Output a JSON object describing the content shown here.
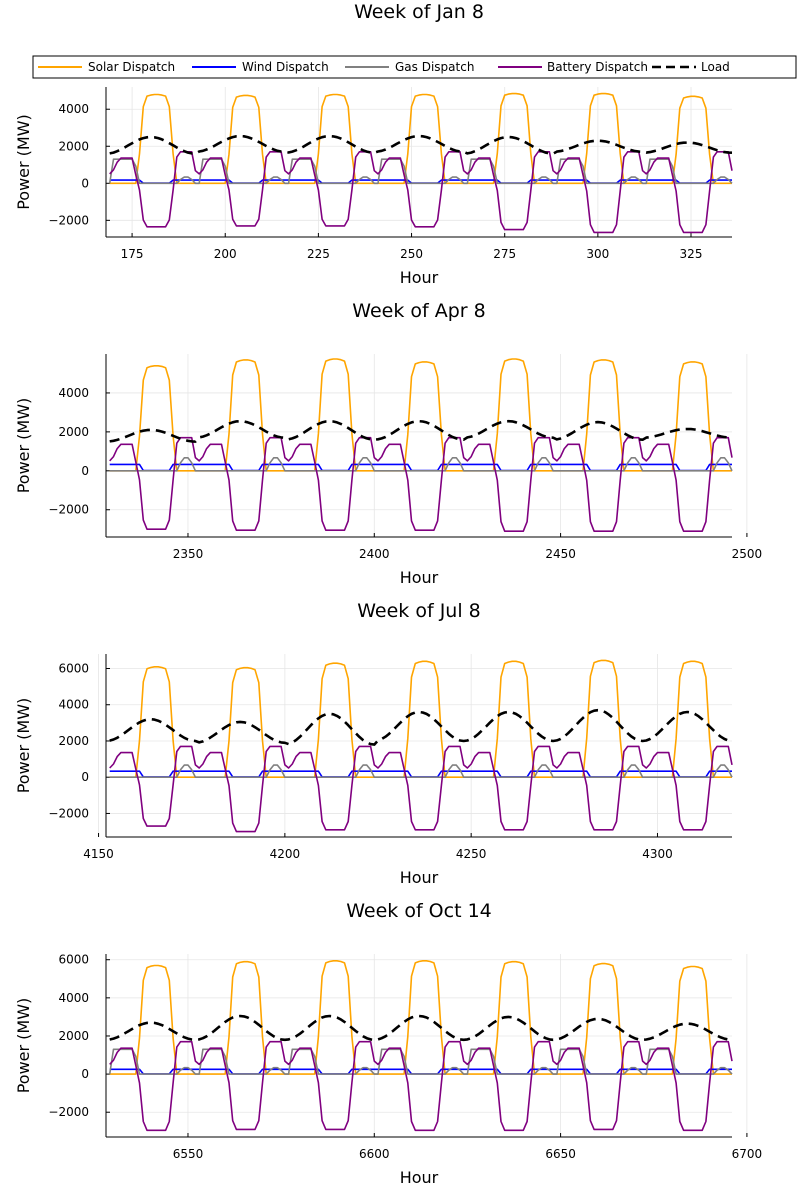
{
  "legend": {
    "placement": "top",
    "entries": [
      {
        "label": "Solar Dispatch",
        "color": "#FFA500",
        "dash": false
      },
      {
        "label": "Wind Dispatch",
        "color": "#0000FF",
        "dash": false
      },
      {
        "label": "Gas Dispatch",
        "color": "#808080",
        "dash": false
      },
      {
        "label": "Battery Dispatch",
        "color": "#800080",
        "dash": false
      },
      {
        "label": "Load",
        "color": "#000000",
        "dash": true
      }
    ]
  },
  "chart_data": [
    {
      "type": "line",
      "title": "Week of Jan 8",
      "xlabel": "Hour",
      "ylabel": "Power (MW)",
      "xlim": [
        168,
        336
      ],
      "ylim": [
        -2900,
        5200
      ],
      "xticks": [
        175,
        200,
        225,
        250,
        275,
        300,
        325
      ],
      "yticks": [
        -2000,
        0,
        2000,
        4000
      ],
      "grid": true,
      "params": {
        "solar_peaks": [
          4800,
          4750,
          4800,
          4800,
          4850,
          4850,
          4700
        ],
        "load_peak": [
          2500,
          2550,
          2550,
          2550,
          2500,
          2300,
          2200
        ],
        "load_min": [
          1600,
          1700,
          1650,
          1700,
          1600,
          1700,
          1650
        ],
        "batt_min": [
          -2350,
          -2300,
          -2300,
          -2350,
          -2500,
          -2650,
          -2650
        ],
        "batt_max": 1700,
        "gas_level": 1300,
        "wind_level": 170
      }
    },
    {
      "type": "line",
      "title": "Week of Apr 8",
      "xlabel": "Hour",
      "ylabel": "Power (MW)",
      "xlim": [
        2328,
        2496
      ],
      "ylim": [
        -3400,
        6000
      ],
      "xticks": [
        2350,
        2400,
        2450,
        2500
      ],
      "yticks": [
        -2000,
        0,
        2000,
        4000
      ],
      "grid": true,
      "params": {
        "solar_peaks": [
          5400,
          5700,
          5750,
          5600,
          5750,
          5700,
          5600
        ],
        "load_peak": [
          2100,
          2550,
          2550,
          2550,
          2550,
          2500,
          2150
        ],
        "load_min": [
          1500,
          1700,
          1600,
          1600,
          1700,
          1600,
          1700
        ],
        "batt_min": [
          -3000,
          -3050,
          -3050,
          -3050,
          -3100,
          -3100,
          -3100
        ],
        "batt_max": 1700,
        "gas_level": 0,
        "wind_level": 330
      }
    },
    {
      "type": "line",
      "title": "Week of Jul 8",
      "xlabel": "Hour",
      "ylabel": "Power (MW)",
      "xlim": [
        4152,
        4320
      ],
      "ylim": [
        -3300,
        6800
      ],
      "xticks": [
        4150,
        4200,
        4250,
        4300
      ],
      "yticks": [
        -2000,
        0,
        2000,
        4000,
        6000
      ],
      "grid": true,
      "params": {
        "solar_peaks": [
          6100,
          6050,
          6300,
          6400,
          6400,
          6450,
          6400
        ],
        "load_peak": [
          3200,
          3050,
          3500,
          3600,
          3600,
          3700,
          3600
        ],
        "load_min": [
          2000,
          1900,
          1800,
          2000,
          2000,
          2000,
          2000
        ],
        "batt_min": [
          -2700,
          -3000,
          -2900,
          -2900,
          -2900,
          -2900,
          -2900
        ],
        "batt_max": 1700,
        "gas_level": 0,
        "wind_level": 330
      }
    },
    {
      "type": "line",
      "title": "Week of Oct 14",
      "xlabel": "Hour",
      "ylabel": "Power (MW)",
      "xlim": [
        6528,
        6696
      ],
      "ylim": [
        -3300,
        6300
      ],
      "xticks": [
        6550,
        6600,
        6650,
        6700
      ],
      "yticks": [
        -2000,
        0,
        2000,
        4000,
        6000
      ],
      "grid": true,
      "params": {
        "solar_peaks": [
          5700,
          5900,
          5950,
          5950,
          5900,
          5800,
          5650
        ],
        "load_peak": [
          2700,
          3050,
          3050,
          3050,
          3000,
          2900,
          2650
        ],
        "load_min": [
          1800,
          1800,
          1800,
          1800,
          1800,
          1800,
          1800
        ],
        "batt_min": [
          -2950,
          -2900,
          -2900,
          -2950,
          -2950,
          -2900,
          -2950
        ],
        "batt_max": 1700,
        "gas_level": 1300,
        "wind_level": 250
      }
    }
  ]
}
